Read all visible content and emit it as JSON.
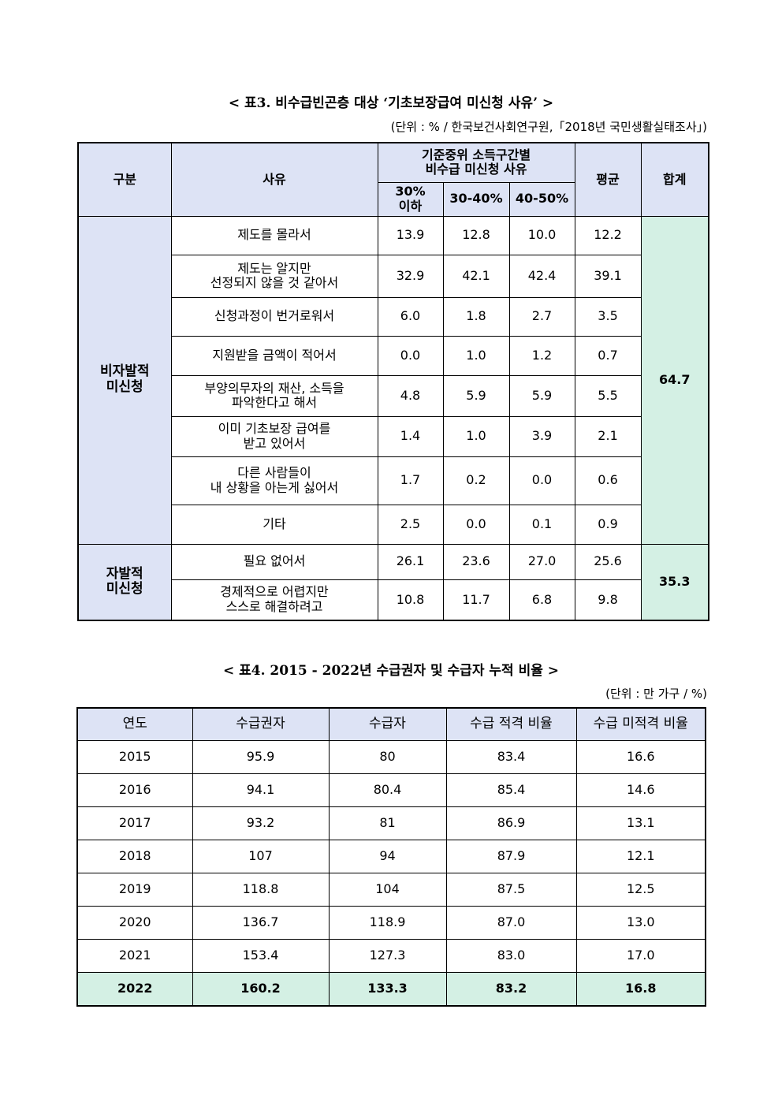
{
  "table3": {
    "title": "< 표3. 비수급빈곤층 대상 ‘기초보장급여 미신청 사유’ >",
    "unit": "(단위 : % / 한국보건사회연구원,「2018년 국민생활실태조사」)",
    "headers": {
      "category": "구분",
      "reason": "사유",
      "group": "기준중위 소득구간별\n비수급 미신청 사유",
      "sub": [
        "30%\n이하",
        "30-40%",
        "40-50%"
      ],
      "avg": "평균",
      "total": "합계"
    },
    "groups": [
      {
        "label": "비자발적\n미신청",
        "total": "64.7",
        "rows": [
          {
            "reason": "제도를 몰라서",
            "v1": "13.9",
            "v2": "12.8",
            "v3": "10.0",
            "avg": "12.2"
          },
          {
            "reason": "제도는 알지만\n선정되지 않을 것 같아서",
            "v1": "32.9",
            "v2": "42.1",
            "v3": "42.4",
            "avg": "39.1"
          },
          {
            "reason": "신청과정이 번거로워서",
            "v1": "6.0",
            "v2": "1.8",
            "v3": "2.7",
            "avg": "3.5"
          },
          {
            "reason": "지원받을 금액이 적어서",
            "v1": "0.0",
            "v2": "1.0",
            "v3": "1.2",
            "avg": "0.7"
          },
          {
            "reason": "부양의무자의 재산, 소득을\n파악한다고 해서",
            "v1": "4.8",
            "v2": "5.9",
            "v3": "5.9",
            "avg": "5.5"
          },
          {
            "reason": "이미 기초보장 급여를\n받고 있어서",
            "v1": "1.4",
            "v2": "1.0",
            "v3": "3.9",
            "avg": "2.1"
          },
          {
            "reason": "다른 사람들이\n내 상황을 아는게 싫어서",
            "v1": "1.7",
            "v2": "0.2",
            "v3": "0.0",
            "avg": "0.6"
          },
          {
            "reason": "기타",
            "v1": "2.5",
            "v2": "0.0",
            "v3": "0.1",
            "avg": "0.9"
          }
        ]
      },
      {
        "label": "자발적\n미신청",
        "total": "35.3",
        "rows": [
          {
            "reason": "필요 없어서",
            "v1": "26.1",
            "v2": "23.6",
            "v3": "27.0",
            "avg": "25.6"
          },
          {
            "reason": "경제적으로 어렵지만\n스스로 해결하려고",
            "v1": "10.8",
            "v2": "11.7",
            "v3": "6.8",
            "avg": "9.8"
          }
        ]
      }
    ]
  },
  "table4": {
    "title": "< 표4. 2015 - 2022년 수급권자 및 수급자 누적 비율 >",
    "unit": "(단위 : 만 가구 / %)",
    "headers": [
      "연도",
      "수급권자",
      "수급자",
      "수급 적격 비율",
      "수급 미적격 비율"
    ],
    "rows": [
      [
        "2015",
        "95.9",
        "80",
        "83.4",
        "16.6"
      ],
      [
        "2016",
        "94.1",
        "80.4",
        "85.4",
        "14.6"
      ],
      [
        "2017",
        "93.2",
        "81",
        "86.9",
        "13.1"
      ],
      [
        "2018",
        "107",
        "94",
        "87.9",
        "12.1"
      ],
      [
        "2019",
        "118.8",
        "104",
        "87.5",
        "12.5"
      ],
      [
        "2020",
        "136.7",
        "118.9",
        "87.0",
        "13.0"
      ],
      [
        "2021",
        "153.4",
        "127.3",
        "83.0",
        "17.0"
      ],
      [
        "2022",
        "160.2",
        "133.3",
        "83.2",
        "16.8"
      ]
    ],
    "highlight_color": "#d4f0e4",
    "header_color": "#dde3f5"
  }
}
